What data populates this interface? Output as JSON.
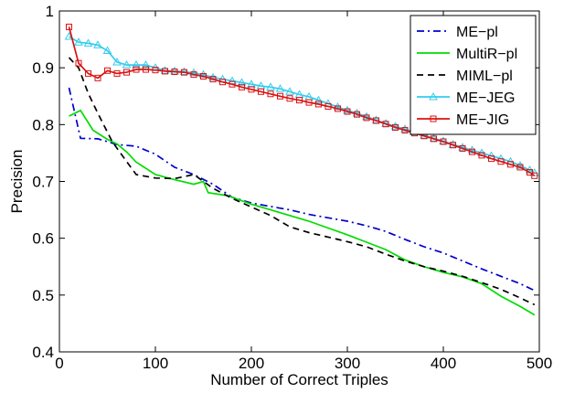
{
  "chart_data": {
    "type": "line",
    "xlabel": "Number of Correct Triples",
    "ylabel": "Precision",
    "xlim": [
      0,
      500
    ],
    "ylim": [
      0.4,
      1.0
    ],
    "x_ticks": [
      0,
      100,
      200,
      300,
      400,
      500
    ],
    "y_ticks": [
      0.4,
      0.5,
      0.6,
      0.7,
      0.8,
      0.9,
      1.0
    ],
    "x_tick_labels": [
      "0",
      "100",
      "200",
      "300",
      "400",
      "500"
    ],
    "y_tick_labels": [
      "0.4",
      "0.5",
      "0.6",
      "0.7",
      "0.8",
      "0.9",
      "1"
    ],
    "grid": false,
    "legend_position": "top-right",
    "series": [
      {
        "name": "ME−pl",
        "color": "#0000cc",
        "dash": "dashdot",
        "marker": "none",
        "points": [
          [
            10,
            0.865
          ],
          [
            22,
            0.776
          ],
          [
            40,
            0.775
          ],
          [
            60,
            0.765
          ],
          [
            80,
            0.762
          ],
          [
            100,
            0.748
          ],
          [
            120,
            0.725
          ],
          [
            140,
            0.712
          ],
          [
            160,
            0.695
          ],
          [
            180,
            0.672
          ],
          [
            200,
            0.662
          ],
          [
            220,
            0.656
          ],
          [
            240,
            0.65
          ],
          [
            260,
            0.642
          ],
          [
            280,
            0.636
          ],
          [
            300,
            0.63
          ],
          [
            320,
            0.622
          ],
          [
            340,
            0.612
          ],
          [
            360,
            0.598
          ],
          [
            380,
            0.585
          ],
          [
            400,
            0.574
          ],
          [
            420,
            0.56
          ],
          [
            440,
            0.546
          ],
          [
            460,
            0.533
          ],
          [
            480,
            0.52
          ],
          [
            495,
            0.508
          ]
        ]
      },
      {
        "name": "MultiR−pl",
        "color": "#00dd00",
        "dash": "solid",
        "marker": "none",
        "points": [
          [
            10,
            0.815
          ],
          [
            22,
            0.825
          ],
          [
            35,
            0.79
          ],
          [
            50,
            0.774
          ],
          [
            60,
            0.766
          ],
          [
            70,
            0.752
          ],
          [
            80,
            0.734
          ],
          [
            100,
            0.712
          ],
          [
            120,
            0.703
          ],
          [
            140,
            0.695
          ],
          [
            150,
            0.7
          ],
          [
            155,
            0.68
          ],
          [
            175,
            0.675
          ],
          [
            200,
            0.66
          ],
          [
            220,
            0.65
          ],
          [
            240,
            0.64
          ],
          [
            260,
            0.63
          ],
          [
            280,
            0.618
          ],
          [
            300,
            0.606
          ],
          [
            320,
            0.593
          ],
          [
            340,
            0.58
          ],
          [
            360,
            0.562
          ],
          [
            380,
            0.55
          ],
          [
            400,
            0.54
          ],
          [
            420,
            0.532
          ],
          [
            440,
            0.52
          ],
          [
            460,
            0.498
          ],
          [
            480,
            0.48
          ],
          [
            495,
            0.465
          ]
        ]
      },
      {
        "name": "MIML−pl",
        "color": "#000000",
        "dash": "dashed",
        "marker": "none",
        "points": [
          [
            10,
            0.918
          ],
          [
            20,
            0.9
          ],
          [
            30,
            0.855
          ],
          [
            40,
            0.82
          ],
          [
            55,
            0.77
          ],
          [
            70,
            0.735
          ],
          [
            80,
            0.712
          ],
          [
            100,
            0.706
          ],
          [
            120,
            0.705
          ],
          [
            140,
            0.712
          ],
          [
            160,
            0.688
          ],
          [
            180,
            0.67
          ],
          [
            200,
            0.655
          ],
          [
            220,
            0.64
          ],
          [
            240,
            0.62
          ],
          [
            260,
            0.61
          ],
          [
            280,
            0.602
          ],
          [
            300,
            0.594
          ],
          [
            320,
            0.585
          ],
          [
            340,
            0.572
          ],
          [
            360,
            0.56
          ],
          [
            380,
            0.55
          ],
          [
            400,
            0.542
          ],
          [
            420,
            0.533
          ],
          [
            440,
            0.522
          ],
          [
            460,
            0.51
          ],
          [
            480,
            0.495
          ],
          [
            495,
            0.483
          ]
        ]
      },
      {
        "name": "ME−JEG",
        "color": "#33ccee",
        "dash": "solid",
        "marker": "triangle",
        "points": [
          [
            10,
            0.955
          ],
          [
            20,
            0.945
          ],
          [
            30,
            0.943
          ],
          [
            40,
            0.94
          ],
          [
            50,
            0.93
          ],
          [
            60,
            0.91
          ],
          [
            70,
            0.905
          ],
          [
            80,
            0.905
          ],
          [
            90,
            0.905
          ],
          [
            100,
            0.9
          ],
          [
            110,
            0.895
          ],
          [
            120,
            0.894
          ],
          [
            130,
            0.893
          ],
          [
            140,
            0.891
          ],
          [
            150,
            0.888
          ],
          [
            160,
            0.883
          ],
          [
            170,
            0.88
          ],
          [
            180,
            0.877
          ],
          [
            190,
            0.874
          ],
          [
            200,
            0.871
          ],
          [
            210,
            0.868
          ],
          [
            220,
            0.866
          ],
          [
            230,
            0.863
          ],
          [
            240,
            0.858
          ],
          [
            250,
            0.853
          ],
          [
            260,
            0.849
          ],
          [
            270,
            0.843
          ],
          [
            280,
            0.837
          ],
          [
            290,
            0.831
          ],
          [
            300,
            0.825
          ],
          [
            310,
            0.82
          ],
          [
            320,
            0.814
          ],
          [
            330,
            0.808
          ],
          [
            340,
            0.802
          ],
          [
            350,
            0.797
          ],
          [
            360,
            0.792
          ],
          [
            370,
            0.787
          ],
          [
            380,
            0.781
          ],
          [
            390,
            0.776
          ],
          [
            400,
            0.771
          ],
          [
            410,
            0.765
          ],
          [
            420,
            0.76
          ],
          [
            430,
            0.755
          ],
          [
            440,
            0.75
          ],
          [
            450,
            0.745
          ],
          [
            460,
            0.74
          ],
          [
            470,
            0.735
          ],
          [
            480,
            0.728
          ],
          [
            490,
            0.72
          ],
          [
            495,
            0.715
          ]
        ]
      },
      {
        "name": "ME−JIG",
        "color": "#dd1111",
        "dash": "solid",
        "marker": "square",
        "points": [
          [
            10,
            0.972
          ],
          [
            20,
            0.908
          ],
          [
            30,
            0.89
          ],
          [
            40,
            0.882
          ],
          [
            50,
            0.895
          ],
          [
            60,
            0.89
          ],
          [
            70,
            0.892
          ],
          [
            80,
            0.897
          ],
          [
            90,
            0.897
          ],
          [
            100,
            0.896
          ],
          [
            110,
            0.894
          ],
          [
            120,
            0.893
          ],
          [
            130,
            0.892
          ],
          [
            140,
            0.888
          ],
          [
            150,
            0.885
          ],
          [
            160,
            0.88
          ],
          [
            170,
            0.875
          ],
          [
            180,
            0.871
          ],
          [
            190,
            0.866
          ],
          [
            200,
            0.862
          ],
          [
            210,
            0.858
          ],
          [
            220,
            0.854
          ],
          [
            230,
            0.85
          ],
          [
            240,
            0.846
          ],
          [
            250,
            0.843
          ],
          [
            260,
            0.839
          ],
          [
            270,
            0.836
          ],
          [
            280,
            0.832
          ],
          [
            290,
            0.828
          ],
          [
            300,
            0.823
          ],
          [
            310,
            0.818
          ],
          [
            320,
            0.812
          ],
          [
            330,
            0.807
          ],
          [
            340,
            0.801
          ],
          [
            350,
            0.795
          ],
          [
            360,
            0.79
          ],
          [
            370,
            0.785
          ],
          [
            380,
            0.78
          ],
          [
            390,
            0.775
          ],
          [
            400,
            0.77
          ],
          [
            410,
            0.764
          ],
          [
            420,
            0.758
          ],
          [
            430,
            0.752
          ],
          [
            440,
            0.746
          ],
          [
            450,
            0.74
          ],
          [
            460,
            0.735
          ],
          [
            470,
            0.73
          ],
          [
            480,
            0.725
          ],
          [
            490,
            0.716
          ],
          [
            495,
            0.71
          ]
        ]
      }
    ]
  }
}
